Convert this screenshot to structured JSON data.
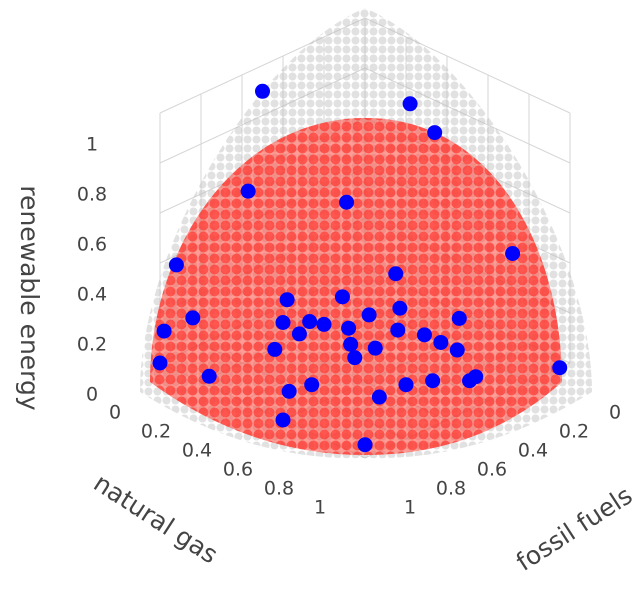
{
  "chart_data": {
    "type": "scatter3d",
    "x_title": "fossil fuels",
    "y_title": "natural gas",
    "z_title": "renewable energy",
    "xlim": [
      0,
      1
    ],
    "ylim": [
      0,
      1
    ],
    "zlim": [
      0,
      1
    ],
    "xticks": [
      0,
      0.2,
      0.4,
      0.6,
      0.8,
      1
    ],
    "yticks": [
      0,
      0.2,
      0.4,
      0.6,
      0.8,
      1
    ],
    "zticks": [
      0,
      0.2,
      0.4,
      0.6,
      0.8,
      1
    ],
    "grid": true,
    "series": [
      {
        "color": "#0000ff",
        "x": [
          0.57,
          0.21,
          0.17,
          0.67,
          0.62,
          0.09,
          0.97,
          0.35,
          0.88,
          0.98,
          1.0,
          0.95,
          1.0,
          0.93,
          0.05,
          0.62,
          0.75,
          0.68,
          0.66,
          0.47,
          0.62,
          0.5,
          0.39,
          0.51,
          0.7,
          0.66,
          0.47,
          0.47,
          0.47,
          0.78,
          0.77,
          0.76,
          0.58,
          0.71,
          0.56,
          0.47,
          0.46,
          0.81,
          0.9,
          0.43
        ],
        "y": [
          0.07,
          0.43,
          0.51,
          0.1,
          0.53,
          0.81,
          0.05,
          0.5,
          0.04,
          0.0,
          0.0,
          0.19,
          0.6,
          0.93,
          1.0,
          0.24,
          0.35,
          0.41,
          0.46,
          0.36,
          0.54,
          0.52,
          0.56,
          0.67,
          0.63,
          0.71,
          0.76,
          0.84,
          0.92,
          0.34,
          0.45,
          0.71,
          0.78,
          0.78,
          0.89,
          0.98,
          1.0,
          0.55,
          0.53,
          0.89
        ],
        "z": [
          0.95,
          0.9,
          0.8,
          0.6,
          0.7,
          0.4,
          0.4,
          0.3,
          0.15,
          0.12,
          0.0,
          0.0,
          0.0,
          0.0,
          0.0,
          0.2,
          0.2,
          0.2,
          0.2,
          0.2,
          0.2,
          0.2,
          0.2,
          0.2,
          0.2,
          0.2,
          0.2,
          0.2,
          0.2,
          0.1,
          0.2,
          0.2,
          0.05,
          0.05,
          0.1,
          0.1,
          0.12,
          0.05,
          0.05,
          0.3
        ]
      }
    ]
  }
}
